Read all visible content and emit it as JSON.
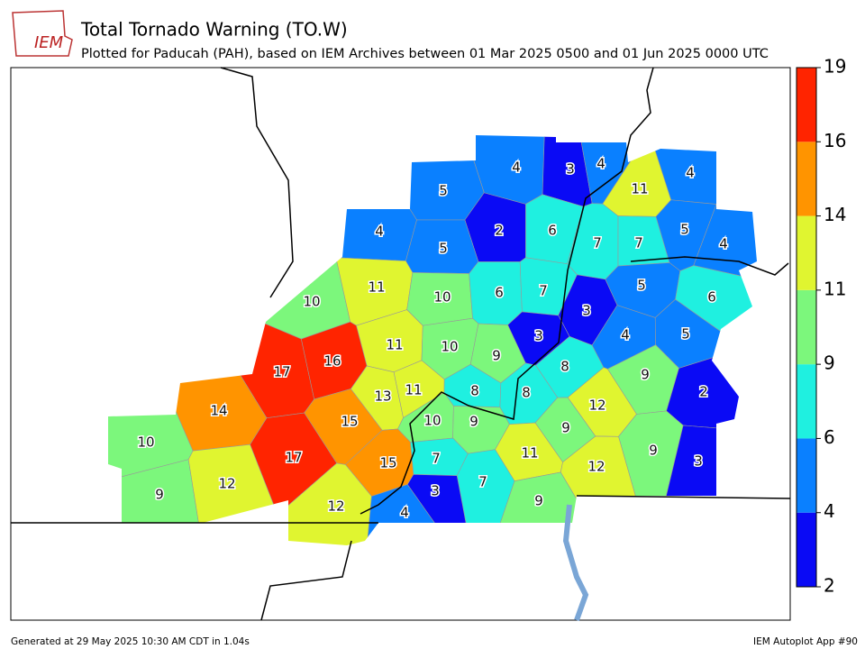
{
  "header": {
    "logo": "IEM",
    "title": "Total Tornado Warning (TO.W)",
    "subtitle": "Plotted for Paducah (PAH), based on IEM Archives  between 01 Mar 2025 0500 and 01 Jun 2025 0000 UTC"
  },
  "map": {
    "counties": [
      4,
      3,
      4,
      4,
      11,
      5,
      4,
      2,
      6,
      7,
      7,
      5,
      4,
      5,
      10,
      11,
      10,
      6,
      7,
      5,
      6,
      3,
      3,
      11,
      10,
      9,
      8,
      4,
      5,
      17,
      16,
      9,
      2,
      14,
      13,
      11,
      8,
      8,
      12,
      15,
      10,
      9,
      9,
      10,
      17,
      15,
      7,
      11,
      9,
      7,
      12,
      3,
      9,
      12,
      3,
      12,
      4,
      9
    ]
  },
  "colorbar": {
    "ticks": [
      2,
      4,
      6,
      9,
      11,
      14,
      16,
      19
    ],
    "colors": [
      "#0a0af5",
      "#0a80ff",
      "#1ff0e0",
      "#7cf77c",
      "#e0f530",
      "#ff9400",
      "#ff2400"
    ]
  },
  "footer": {
    "left": "Generated at 29 May 2025 10:30 AM CDT in 1.04s",
    "right": "IEM Autoplot App #90"
  }
}
